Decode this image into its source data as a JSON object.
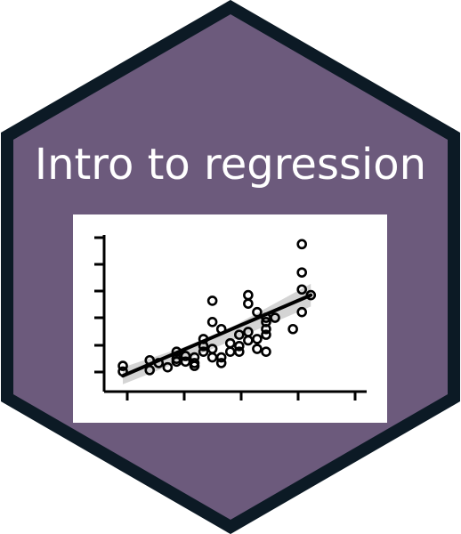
{
  "sticker": {
    "title": "Intro to regression",
    "colors": {
      "hex_fill": "#6c5a7c",
      "hex_border": "#0c1a25",
      "panel_bg": "#ffffff",
      "ink": "#000000",
      "band": "#cccccc"
    }
  },
  "chart_data": {
    "type": "scatter",
    "title": "",
    "xlabel": "",
    "ylabel": "",
    "xlim": [
      0,
      10.5
    ],
    "ylim": [
      0,
      10
    ],
    "x_ticks": [
      0.5,
      2.5,
      4.5,
      6.5,
      8.5,
      10.5
    ],
    "y_ticks": [
      0.5,
      2.5,
      4.5,
      6.5,
      8.5,
      10.5
    ],
    "tick_labels_shown": false,
    "grid": false,
    "legend": "none",
    "points": [
      [
        0.4,
        1.0
      ],
      [
        0.4,
        0.6
      ],
      [
        1.6,
        1.4
      ],
      [
        1.6,
        0.7
      ],
      [
        2.0,
        1.2
      ],
      [
        2.4,
        0.9
      ],
      [
        2.8,
        2.0
      ],
      [
        2.8,
        1.5
      ],
      [
        2.8,
        1.3
      ],
      [
        3.2,
        1.7
      ],
      [
        3.2,
        1.3
      ],
      [
        3.6,
        1.6
      ],
      [
        3.6,
        1.2
      ],
      [
        3.6,
        1.0
      ],
      [
        4.0,
        2.0
      ],
      [
        4.0,
        2.4
      ],
      [
        4.0,
        2.9
      ],
      [
        4.4,
        1.6
      ],
      [
        4.4,
        2.2
      ],
      [
        4.4,
        4.1
      ],
      [
        4.4,
        5.6
      ],
      [
        4.8,
        1.2
      ],
      [
        4.8,
        1.6
      ],
      [
        4.8,
        3.6
      ],
      [
        5.2,
        2.0
      ],
      [
        5.2,
        2.6
      ],
      [
        5.6,
        2.0
      ],
      [
        5.6,
        2.4
      ],
      [
        5.6,
        3.2
      ],
      [
        6.0,
        2.8
      ],
      [
        6.0,
        3.4
      ],
      [
        6.0,
        5.4
      ],
      [
        6.0,
        6.0
      ],
      [
        6.4,
        2.2
      ],
      [
        6.4,
        2.9
      ],
      [
        6.4,
        4.8
      ],
      [
        6.8,
        2.0
      ],
      [
        6.8,
        3.2
      ],
      [
        6.8,
        3.6
      ],
      [
        6.8,
        4.1
      ],
      [
        6.8,
        4.4
      ],
      [
        7.2,
        4.4
      ],
      [
        8.0,
        3.6
      ],
      [
        8.4,
        4.8
      ],
      [
        8.4,
        6.4
      ],
      [
        8.4,
        7.6
      ],
      [
        8.4,
        9.6
      ],
      [
        8.8,
        6.0
      ]
    ],
    "fit": {
      "x": [
        0.4,
        8.8
      ],
      "y": [
        0.3,
        6.0
      ]
    },
    "confidence_band": {
      "x": [
        0.4,
        4.4,
        8.8
      ],
      "lower": [
        -0.3,
        2.2,
        5.2
      ],
      "upper": [
        0.9,
        3.0,
        6.8
      ]
    }
  }
}
